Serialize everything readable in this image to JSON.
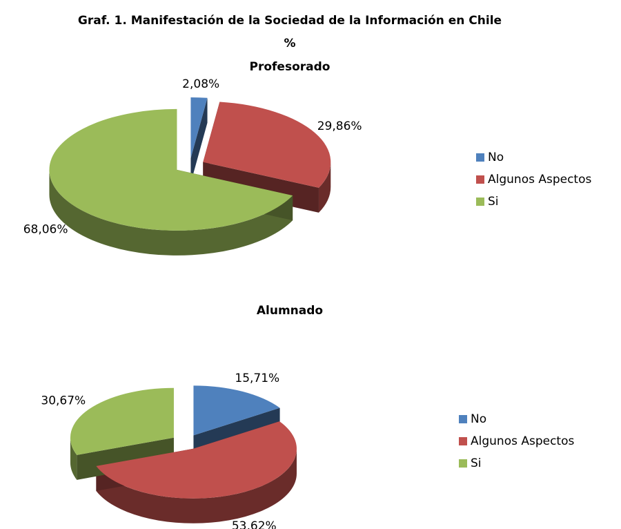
{
  "header": {
    "title": "Graf. 1.  Manifestación de la Sociedad de la Información en Chile",
    "subtitle": "%"
  },
  "chart_data": [
    {
      "type": "pie3d",
      "title": "Profesorado",
      "categories": [
        "No",
        "Algunos Aspectos",
        "Si"
      ],
      "values": [
        2.08,
        29.86,
        68.06
      ],
      "value_labels": [
        "2,08%",
        "29,86%",
        "68,06%"
      ],
      "colors": [
        "#4f81bd",
        "#c0504d",
        "#9bbb59"
      ],
      "legend": "right"
    },
    {
      "type": "pie3d",
      "title": "Alumnado",
      "categories": [
        "No",
        "Algunos Aspectos",
        "Si"
      ],
      "values": [
        15.71,
        53.62,
        30.67
      ],
      "value_labels": [
        "15,71%",
        "53,62%",
        "30,67%"
      ],
      "colors": [
        "#4f81bd",
        "#c0504d",
        "#9bbb59"
      ],
      "legend": "right"
    }
  ]
}
